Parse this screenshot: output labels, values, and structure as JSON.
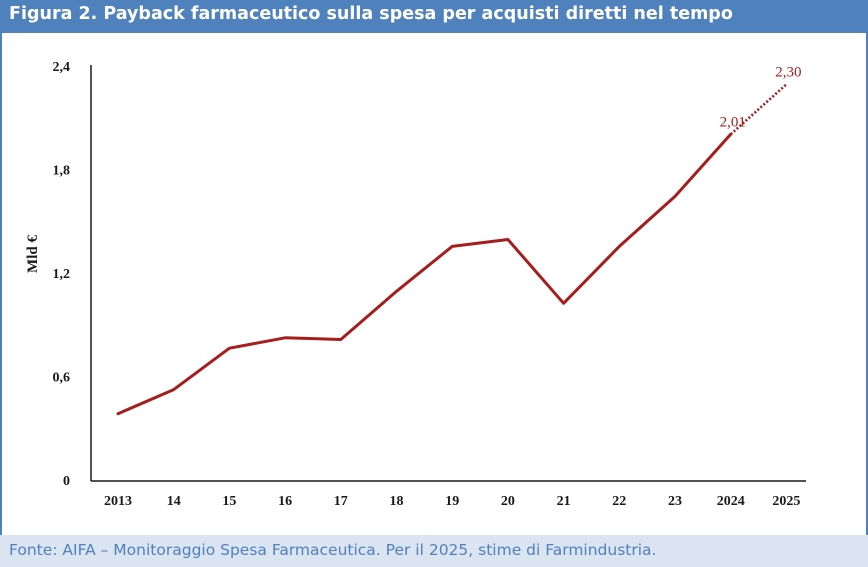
{
  "title": "Figura 2. Payback farmaceutico sulla spesa per acquisti diretti nel tempo",
  "source": "Fonte: AIFA – Monitoraggio Spesa Farmaceutica. Per il 2025, stime di Farmindustria.",
  "colors": {
    "header": "#4f81bd",
    "footer_bg": "#dbe5f1",
    "line": "#a51d1d",
    "axis": "#1a1a1a"
  },
  "chart_data": {
    "type": "line",
    "categories": [
      "2013",
      "14",
      "15",
      "16",
      "17",
      "18",
      "19",
      "20",
      "21",
      "22",
      "23",
      "2024",
      "2025"
    ],
    "series": [
      {
        "style": "solid",
        "values": [
          0.39,
          0.53,
          0.77,
          0.83,
          0.82,
          1.1,
          1.36,
          1.4,
          1.03,
          1.36,
          1.65,
          2.01,
          null
        ]
      },
      {
        "style": "dotted",
        "values": [
          null,
          null,
          null,
          null,
          null,
          null,
          null,
          null,
          null,
          null,
          null,
          2.01,
          2.3
        ]
      }
    ],
    "data_labels": [
      {
        "category": "2024",
        "text": "2,01"
      },
      {
        "category": "2025",
        "text": "2,30"
      }
    ],
    "yticks": [
      "0",
      "0,6",
      "1,2",
      "1,8",
      "2,4"
    ],
    "ytick_values": [
      0,
      0.6,
      1.2,
      1.8,
      2.4
    ],
    "ylabel": "Mld €",
    "xlabel": "",
    "ylim": [
      0,
      2.4
    ],
    "grid": false,
    "legend": "none"
  }
}
